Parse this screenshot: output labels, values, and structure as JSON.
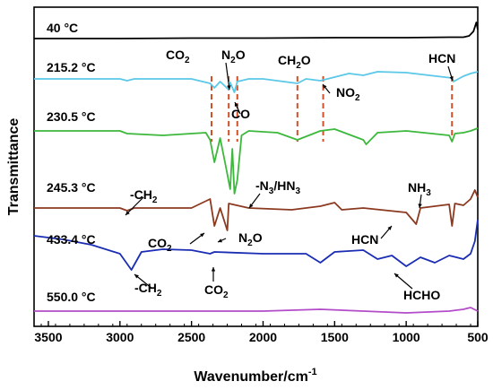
{
  "chart_data": {
    "type": "line",
    "xlabel": "Wavenumber/cm",
    "xlabel_superscript": "-1",
    "ylabel": "Transmittance",
    "xlim": [
      3600,
      500
    ],
    "x_reversed": true,
    "xticks": [
      3500,
      3000,
      2500,
      2000,
      1500,
      1000,
      500
    ],
    "yticks_shown": false,
    "grid": false,
    "legend": "none",
    "series": [
      {
        "name": "40 °C",
        "color": "#000000",
        "x": [
          3600,
          3000,
          2500,
          2000,
          1500,
          1000,
          700,
          600,
          560,
          530,
          510,
          500
        ],
        "y": [
          0,
          0,
          0.5,
          0.5,
          1,
          1,
          1.5,
          1.5,
          3,
          8,
          18,
          10
        ]
      },
      {
        "name": "215.2 °C",
        "color": "#5bc8e8",
        "x": [
          3600,
          3000,
          2950,
          2900,
          2500,
          2370,
          2340,
          2300,
          2240,
          2230,
          2200,
          2180,
          2100,
          2000,
          1760,
          1700,
          1600,
          1400,
          1300,
          1200,
          1000,
          680,
          670,
          600,
          550,
          500
        ],
        "y": [
          0,
          0,
          -2,
          0,
          0,
          -5,
          -10,
          -3,
          -12,
          -4,
          -15,
          -3,
          0,
          0,
          -5,
          0,
          -2,
          6,
          4,
          8,
          7,
          1,
          -3,
          3,
          6,
          8
        ]
      },
      {
        "name": "230.5 °C",
        "color": "#3cb83c",
        "x": [
          3600,
          3000,
          2950,
          2700,
          2400,
          2370,
          2340,
          2300,
          2260,
          2230,
          2215,
          2200,
          2180,
          2150,
          2100,
          1900,
          1760,
          1600,
          1500,
          1300,
          1280,
          1200,
          1000,
          700,
          680,
          660,
          600,
          550,
          500
        ],
        "y": [
          0,
          0,
          -3,
          -5,
          -2,
          -10,
          -35,
          -8,
          -40,
          -65,
          -20,
          -70,
          -55,
          -5,
          0,
          -2,
          -10,
          0,
          2,
          -10,
          -15,
          -2,
          0,
          -5,
          -12,
          -3,
          -2,
          0,
          3
        ]
      },
      {
        "name": "245.3 °C",
        "color": "#8b3a20",
        "x": [
          3600,
          3000,
          2950,
          2900,
          2500,
          2370,
          2340,
          2300,
          2250,
          2240,
          2100,
          1800,
          1600,
          1500,
          1450,
          1300,
          1000,
          930,
          900,
          700,
          680,
          660,
          600,
          550,
          520,
          500
        ],
        "y": [
          0,
          0,
          -3,
          0,
          0,
          10,
          -20,
          0,
          -25,
          5,
          0,
          -2,
          2,
          6,
          -2,
          0,
          -5,
          -18,
          0,
          4,
          -20,
          5,
          3,
          10,
          20,
          12
        ]
      },
      {
        "name": "433.4 °C",
        "color": "#1a2db3",
        "x": [
          3600,
          3400,
          3200,
          3000,
          2920,
          2850,
          2700,
          2500,
          2370,
          2340,
          2000,
          1700,
          1600,
          1500,
          1300,
          1200,
          1100,
          1000,
          900,
          800,
          700,
          600,
          550,
          520,
          500
        ],
        "y": [
          20,
          16,
          10,
          0,
          -18,
          2,
          5,
          4,
          0,
          2,
          0,
          0,
          -10,
          2,
          4,
          -6,
          -2,
          -14,
          -4,
          -10,
          -2,
          -6,
          0,
          14,
          38
        ]
      },
      {
        "name": "550.0 °C",
        "color": "#b34cc8",
        "x": [
          3600,
          3000,
          2500,
          2000,
          1600,
          1300,
          1000,
          700,
          600,
          550,
          500
        ],
        "y": [
          0,
          0,
          0,
          0,
          2,
          0,
          -2,
          0,
          2,
          4,
          0
        ]
      }
    ],
    "annotations": [
      {
        "text": "CO",
        "sub": "2"
      },
      {
        "text": "N",
        "sub": "2",
        "after": "O"
      },
      {
        "text": "CO"
      },
      {
        "text": "CH",
        "sub": "2",
        "after": "O"
      },
      {
        "text": "NO",
        "sub": "2"
      },
      {
        "text": "HCN"
      },
      {
        "text": "-CH",
        "sub": "2"
      },
      {
        "text": "-N",
        "sub": "3",
        "after": "/HN",
        "sub2": "3"
      },
      {
        "text": "NH",
        "sub": "3"
      },
      {
        "text": "CO",
        "sub": "2"
      },
      {
        "text": "N",
        "sub": "2",
        "after": "O"
      },
      {
        "text": "HCN"
      },
      {
        "text": "-CH",
        "sub": "2"
      },
      {
        "text": "CO",
        "sub": "2"
      },
      {
        "text": "HCHO"
      }
    ],
    "reference_lines_x": [
      2360,
      2240,
      2180,
      1760,
      1580,
      680
    ]
  }
}
